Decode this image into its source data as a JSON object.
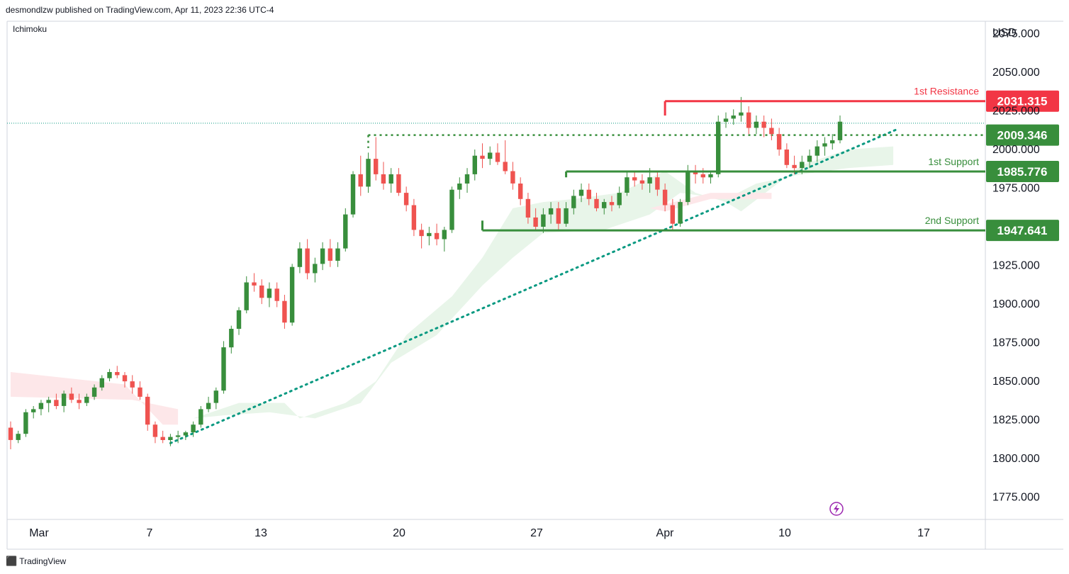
{
  "header": {
    "published": "desmondlzw published on TradingView.com, Apr 11, 2023 22:36 UTC-4",
    "indicator": "Ichimoku"
  },
  "footer": {
    "brand": "TradingView",
    "logo": "tradingview-logo-icon"
  },
  "colors": {
    "up": "#388e3c",
    "down": "#ef5350",
    "resistance": "#f23645",
    "support": "#388e3c",
    "dotted": "#089981",
    "cloud_bull": "#e8f5e9",
    "cloud_bear": "#fde7e9"
  },
  "chart_data": {
    "type": "candlestick",
    "currency": "USD",
    "ylim": [
      1762,
      2083
    ],
    "y_ticks": [
      "2075.000",
      "2050.000",
      "2025.000",
      "2000.000",
      "1975.000",
      "1925.000",
      "1900.000",
      "1875.000",
      "1850.000",
      "1825.000",
      "1800.000",
      "1775.000"
    ],
    "x_ticks": [
      "Mar",
      "7",
      "13",
      "20",
      "27",
      "Apr",
      "10",
      "17"
    ],
    "levels": [
      {
        "name": "1st Resistance",
        "value": 2031.315,
        "label": "2031.315",
        "color": "#f23645"
      },
      {
        "name": "",
        "value": 2009.346,
        "label": "2009.346",
        "color": "#388e3c"
      },
      {
        "name": "1st Support",
        "value": 1985.776,
        "label": "1985.776",
        "color": "#388e3c"
      },
      {
        "name": "2nd Support",
        "value": 1947.641,
        "label": "1947.641",
        "color": "#388e3c"
      }
    ],
    "close_reference": 2017,
    "ohlc": [
      [
        1820,
        1824,
        1806,
        1812
      ],
      [
        1812,
        1818,
        1810,
        1816
      ],
      [
        1816,
        1832,
        1814,
        1830
      ],
      [
        1830,
        1834,
        1826,
        1832
      ],
      [
        1832,
        1838,
        1828,
        1836
      ],
      [
        1836,
        1840,
        1830,
        1838
      ],
      [
        1838,
        1842,
        1832,
        1834
      ],
      [
        1834,
        1844,
        1830,
        1842
      ],
      [
        1842,
        1846,
        1836,
        1838
      ],
      [
        1838,
        1842,
        1832,
        1836
      ],
      [
        1836,
        1842,
        1834,
        1840
      ],
      [
        1840,
        1848,
        1838,
        1846
      ],
      [
        1846,
        1854,
        1844,
        1852
      ],
      [
        1852,
        1858,
        1850,
        1856
      ],
      [
        1856,
        1860,
        1852,
        1854
      ],
      [
        1854,
        1856,
        1846,
        1850
      ],
      [
        1850,
        1854,
        1842,
        1846
      ],
      [
        1846,
        1850,
        1838,
        1840
      ],
      [
        1840,
        1842,
        1818,
        1822
      ],
      [
        1822,
        1824,
        1810,
        1814
      ],
      [
        1814,
        1818,
        1810,
        1812
      ],
      [
        1812,
        1816,
        1808,
        1814
      ],
      [
        1814,
        1818,
        1810,
        1815
      ],
      [
        1815,
        1818,
        1812,
        1817
      ],
      [
        1817,
        1824,
        1814,
        1822
      ],
      [
        1822,
        1834,
        1820,
        1832
      ],
      [
        1832,
        1840,
        1830,
        1836
      ],
      [
        1836,
        1846,
        1832,
        1844
      ],
      [
        1844,
        1876,
        1842,
        1872
      ],
      [
        1872,
        1886,
        1868,
        1884
      ],
      [
        1884,
        1898,
        1880,
        1896
      ],
      [
        1896,
        1918,
        1894,
        1914
      ],
      [
        1914,
        1920,
        1908,
        1912
      ],
      [
        1912,
        1916,
        1900,
        1904
      ],
      [
        1904,
        1914,
        1898,
        1910
      ],
      [
        1910,
        1914,
        1898,
        1902
      ],
      [
        1902,
        1906,
        1884,
        1888
      ],
      [
        1888,
        1926,
        1886,
        1924
      ],
      [
        1924,
        1940,
        1920,
        1936
      ],
      [
        1936,
        1942,
        1916,
        1920
      ],
      [
        1920,
        1930,
        1914,
        1926
      ],
      [
        1926,
        1940,
        1922,
        1936
      ],
      [
        1936,
        1942,
        1924,
        1928
      ],
      [
        1928,
        1940,
        1924,
        1936
      ],
      [
        1936,
        1962,
        1934,
        1958
      ],
      [
        1958,
        1986,
        1956,
        1984
      ],
      [
        1984,
        1996,
        1970,
        1976
      ],
      [
        1976,
        1998,
        1972,
        1994
      ],
      [
        1994,
        2008,
        1980,
        1984
      ],
      [
        1984,
        1992,
        1974,
        1978
      ],
      [
        1978,
        1988,
        1972,
        1984
      ],
      [
        1984,
        1988,
        1970,
        1972
      ],
      [
        1972,
        1976,
        1960,
        1964
      ],
      [
        1964,
        1968,
        1944,
        1948
      ],
      [
        1948,
        1952,
        1936,
        1944
      ],
      [
        1944,
        1950,
        1938,
        1946
      ],
      [
        1946,
        1952,
        1938,
        1942
      ],
      [
        1942,
        1950,
        1934,
        1948
      ],
      [
        1948,
        1976,
        1946,
        1974
      ],
      [
        1974,
        1982,
        1968,
        1978
      ],
      [
        1978,
        1988,
        1972,
        1984
      ],
      [
        1984,
        2000,
        1980,
        1996
      ],
      [
        1996,
        2004,
        1988,
        1994
      ],
      [
        1994,
        2002,
        1990,
        1998
      ],
      [
        1998,
        2004,
        1990,
        1992
      ],
      [
        1992,
        2006,
        1984,
        1986
      ],
      [
        1986,
        1992,
        1974,
        1978
      ],
      [
        1978,
        1982,
        1964,
        1968
      ],
      [
        1968,
        1972,
        1952,
        1956
      ],
      [
        1956,
        1962,
        1948,
        1950
      ],
      [
        1950,
        1962,
        1946,
        1958
      ],
      [
        1958,
        1966,
        1952,
        1962
      ],
      [
        1962,
        1966,
        1948,
        1952
      ],
      [
        1952,
        1966,
        1950,
        1962
      ],
      [
        1962,
        1974,
        1958,
        1970
      ],
      [
        1970,
        1978,
        1966,
        1974
      ],
      [
        1974,
        1978,
        1964,
        1968
      ],
      [
        1968,
        1972,
        1960,
        1962
      ],
      [
        1962,
        1968,
        1958,
        1966
      ],
      [
        1966,
        1970,
        1960,
        1964
      ],
      [
        1964,
        1976,
        1962,
        1972
      ],
      [
        1972,
        1986,
        1970,
        1982
      ],
      [
        1982,
        1986,
        1976,
        1980
      ],
      [
        1980,
        1984,
        1974,
        1978
      ],
      [
        1978,
        1988,
        1972,
        1982
      ],
      [
        1982,
        1986,
        1970,
        1974
      ],
      [
        1974,
        1978,
        1960,
        1964
      ],
      [
        1964,
        1968,
        1948,
        1952
      ],
      [
        1952,
        1968,
        1950,
        1966
      ],
      [
        1966,
        1990,
        1964,
        1986
      ],
      [
        1986,
        1990,
        1978,
        1984
      ],
      [
        1984,
        1988,
        1978,
        1982
      ],
      [
        1982,
        1986,
        1978,
        1984
      ],
      [
        1984,
        2022,
        1982,
        2018
      ],
      [
        2018,
        2024,
        2014,
        2020
      ],
      [
        2020,
        2026,
        2016,
        2022
      ],
      [
        2022,
        2034,
        2018,
        2024
      ],
      [
        2024,
        2028,
        2010,
        2014
      ],
      [
        2014,
        2022,
        2010,
        2018
      ],
      [
        2018,
        2022,
        2008,
        2014
      ],
      [
        2014,
        2020,
        2006,
        2010
      ],
      [
        2010,
        2014,
        1996,
        2000
      ],
      [
        2000,
        2004,
        1988,
        1990
      ],
      [
        1990,
        1996,
        1984,
        1988
      ],
      [
        1988,
        1996,
        1984,
        1992
      ],
      [
        1992,
        2000,
        1988,
        1996
      ],
      [
        1996,
        2006,
        1992,
        2002
      ],
      [
        2002,
        2008,
        1996,
        2004
      ],
      [
        2004,
        2010,
        2000,
        2006
      ],
      [
        2006,
        2022,
        2004,
        2018
      ]
    ]
  }
}
